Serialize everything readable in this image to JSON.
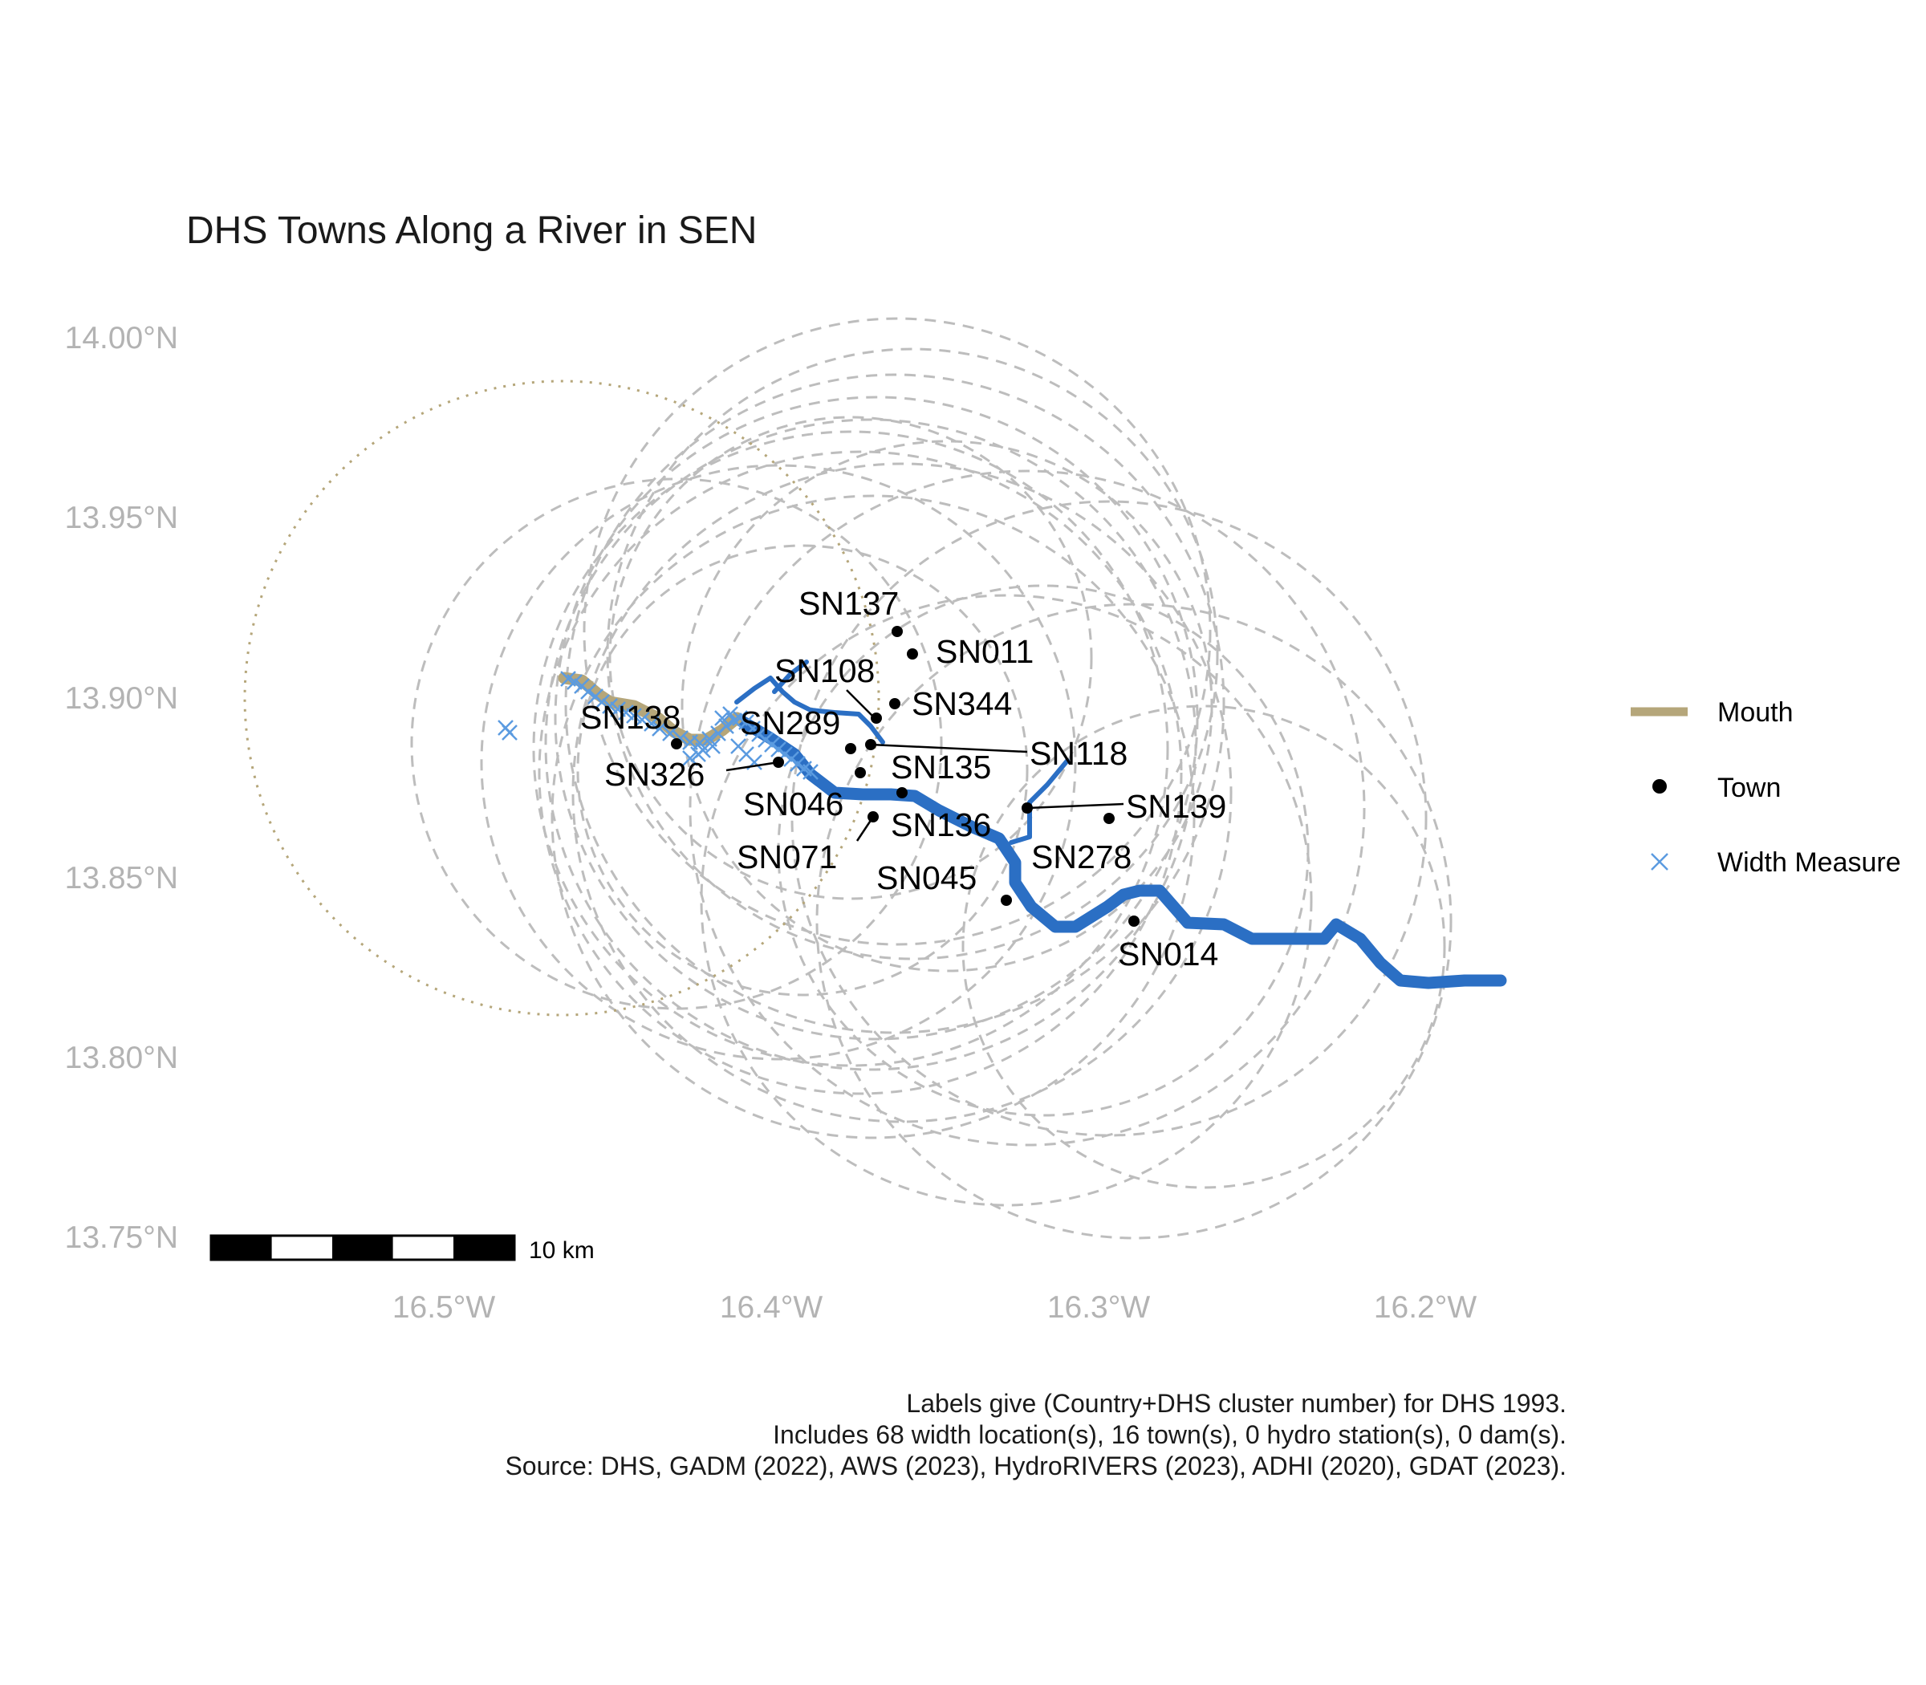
{
  "title": "DHS Towns Along a River in SEN",
  "axes": {
    "y_ticks": [
      "14.00°N",
      "13.95°N",
      "13.90°N",
      "13.85°N",
      "13.80°N",
      "13.75°N"
    ],
    "x_ticks": [
      "16.5°W",
      "16.4°W",
      "16.3°W",
      "16.2°W"
    ]
  },
  "legend": {
    "mouth": "Mouth",
    "town": "Town",
    "width": "Width Measure"
  },
  "scale_bar": {
    "label": "10 km"
  },
  "caption": {
    "line1": "Labels give (Country+DHS cluster number) for DHS 1993.",
    "line2": "Includes 68 width location(s), 16 town(s), 0 hydro station(s), 0 dam(s).",
    "line3": "Source: DHS, GADM (2022), AWS (2023), HydroRIVERS (2023), ADHI (2020), GDAT (2023)."
  },
  "colors": {
    "river": "#2b6fc4",
    "mouth": "#b5a67a",
    "width_marker": "#5b9be0",
    "buffer": "#bdbdbd",
    "town": "#000000",
    "tick": "#b3b3b3"
  },
  "towns": [
    {
      "id": "SN137",
      "lon": -16.368,
      "lat": 13.917
    },
    {
      "id": "SN011",
      "lon": -16.364,
      "lat": 13.911
    },
    {
      "id": "SN108",
      "lon": -16.374,
      "lat": 13.893
    },
    {
      "id": "SN344",
      "lon": -16.369,
      "lat": 13.898
    },
    {
      "id": "SN138",
      "lon": -16.43,
      "lat": 13.887
    },
    {
      "id": "SN289",
      "lon": -16.382,
      "lat": 13.886
    },
    {
      "id": "SN118",
      "lon": -16.375,
      "lat": 13.887
    },
    {
      "id": "SN326",
      "lon": -16.399,
      "lat": 13.882
    },
    {
      "id": "SN135",
      "lon": -16.379,
      "lat": 13.88
    },
    {
      "id": "SN046",
      "lon": -16.366,
      "lat": 13.873
    },
    {
      "id": "SN139",
      "lon": -16.303,
      "lat": 13.867
    },
    {
      "id": "SN136",
      "lon": -16.328,
      "lat": 13.869
    },
    {
      "id": "SN071",
      "lon": -16.375,
      "lat": 13.867
    },
    {
      "id": "SN278",
      "lon": -16.328,
      "lat": 13.868
    },
    {
      "id": "SN045",
      "lon": -16.332,
      "lat": 13.844
    },
    {
      "id": "SN014",
      "lon": -16.295,
      "lat": 13.838
    }
  ]
}
